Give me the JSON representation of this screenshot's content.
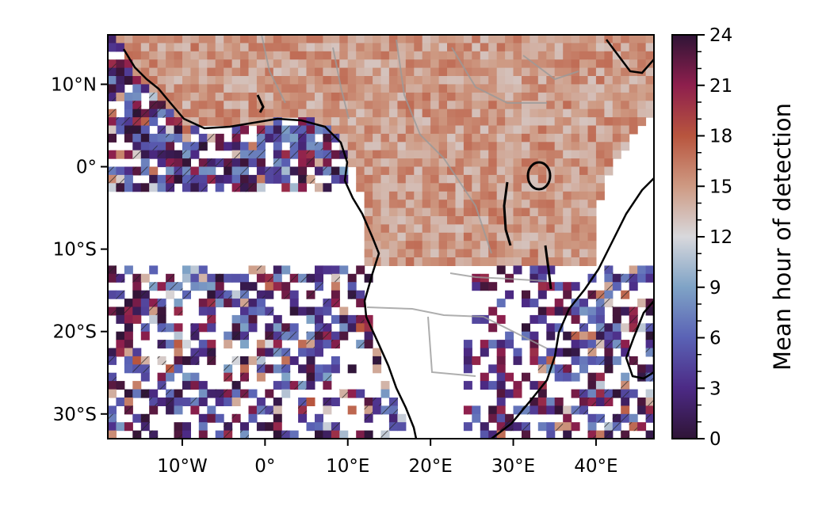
{
  "map": {
    "lon_range": [
      -19,
      47
    ],
    "lat_range": [
      -33,
      16
    ],
    "lat_ticks": [
      {
        "value": 10,
        "label": "10°N"
      },
      {
        "value": 0,
        "label": "0°"
      },
      {
        "value": -10,
        "label": "10°S"
      },
      {
        "value": -20,
        "label": "20°S"
      },
      {
        "value": -30,
        "label": "30°S"
      }
    ],
    "lon_ticks": [
      {
        "value": -10,
        "label": "10°W"
      },
      {
        "value": 0,
        "label": "0°"
      },
      {
        "value": 10,
        "label": "10°E"
      },
      {
        "value": 20,
        "label": "20°E"
      },
      {
        "value": 30,
        "label": "30°E"
      },
      {
        "value": 40,
        "label": "40°E"
      }
    ],
    "grid_resolution_deg": 1,
    "land_color_mean_hour": 15,
    "ocean_night_hours": [
      0,
      8
    ]
  },
  "colorbar": {
    "label": "Mean hour of detection",
    "min": 0,
    "max": 24,
    "ticks": [
      "0",
      "3",
      "6",
      "9",
      "12",
      "15",
      "18",
      "21",
      "24"
    ],
    "colormap": "twilight_shifted",
    "stops": [
      "#2f1436",
      "#4c2a85",
      "#5a62b5",
      "#7fa3c6",
      "#d8d8dc",
      "#ce9a83",
      "#b8553e",
      "#8e1f4d",
      "#2f1436"
    ]
  }
}
